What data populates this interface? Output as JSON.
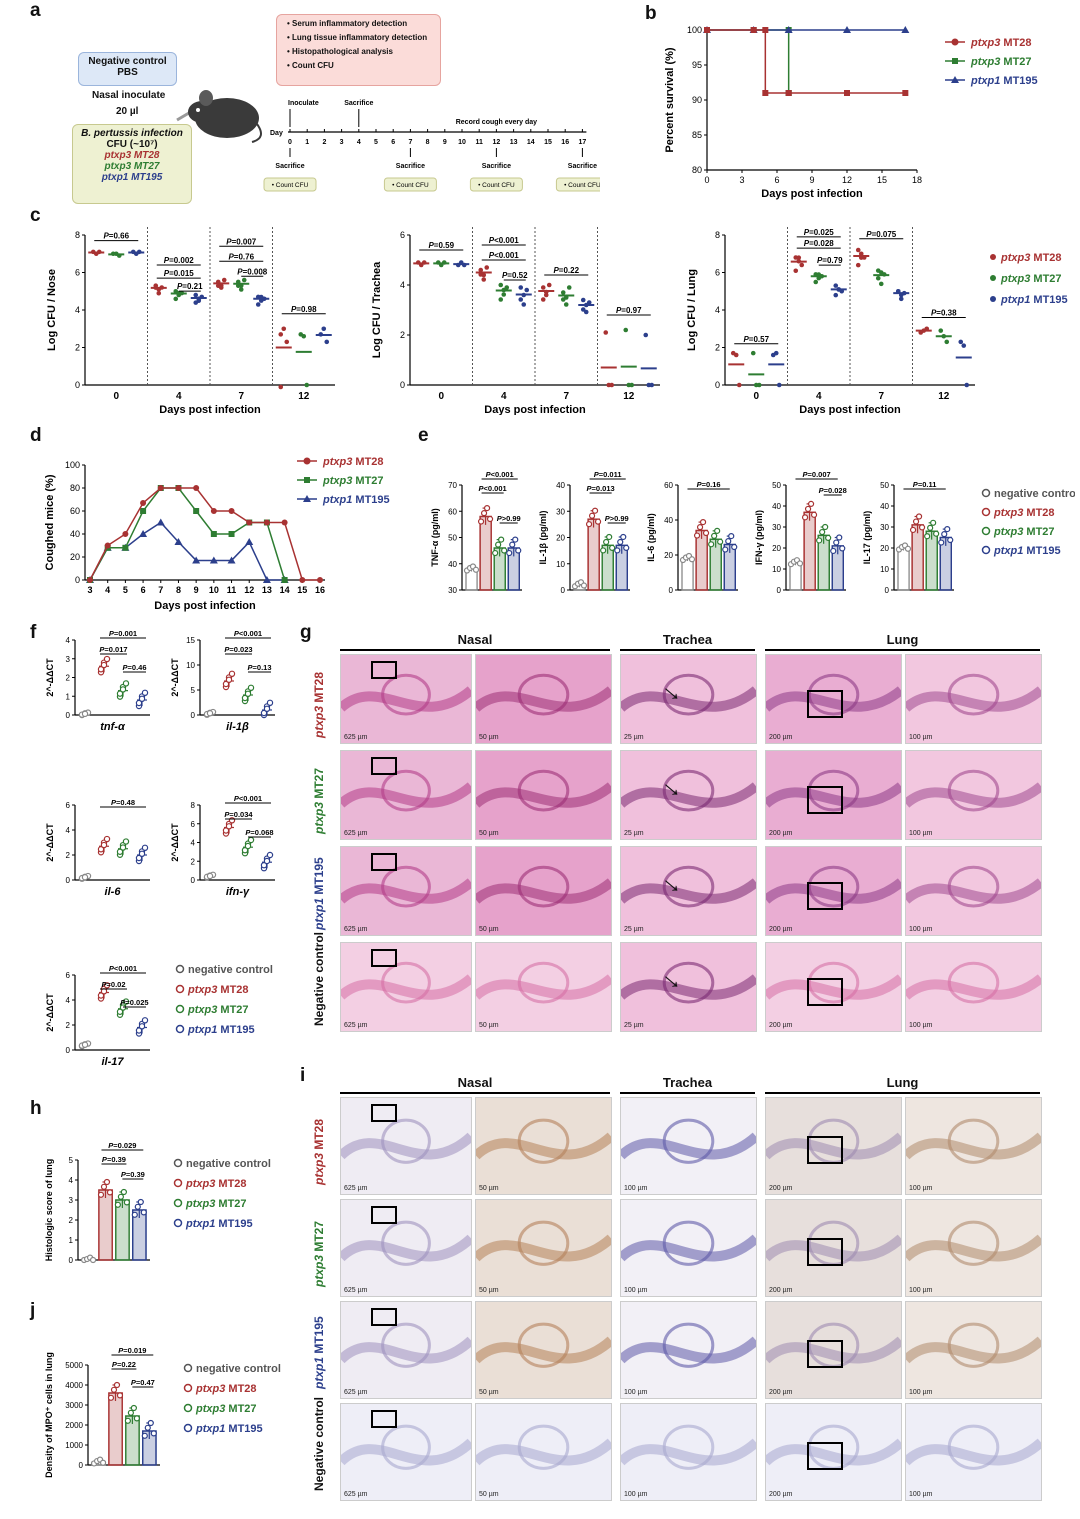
{
  "panels": {
    "a": "a",
    "b": "b",
    "c": "c",
    "d": "d",
    "e": "e",
    "f": "f",
    "g": "g",
    "h": "h",
    "i": "i",
    "j": "j"
  },
  "colors": {
    "mt28": "#a83232",
    "mt27": "#2e7d32",
    "mt195": "#2c3f8c",
    "neg": "#888888"
  },
  "legend": {
    "neg": "negative control",
    "mt28_a": "ptxp3",
    "mt28_b": " MT28",
    "mt27_a": "ptxp3",
    "mt27_b": " MT27",
    "mt195_a": "ptxp1",
    "mt195_b": " MT195"
  },
  "panel_a": {
    "neg_title": "Negative control",
    "neg_sub": "PBS",
    "nasal": "Nasal inoculate",
    "vol": "20 µl",
    "infect_title": "B. pertussis infection",
    "infect_cfu": "CFU (~10⁷)",
    "strains": [
      "ptxp3 MT28",
      "ptxp3 MT27",
      "ptxp1 MT195"
    ],
    "analysis": [
      "Serum inflammatory detection",
      "Lung tissue inflammatory detection",
      "Histopathological analysis",
      "Count CFU"
    ],
    "inoculate": "Inoculate",
    "sacrifice": "Sacrifice",
    "record": "Record cough every day",
    "day_label": "Day",
    "days": [
      "0",
      "1",
      "2",
      "3",
      "4",
      "5",
      "6",
      "7",
      "8",
      "9",
      "10",
      "11",
      "12",
      "13",
      "14",
      "15",
      "16",
      "17"
    ],
    "sacrifice_days": [
      "0",
      "7",
      "12",
      "17"
    ],
    "count_cfu": "Count CFU"
  },
  "chart_data": [
    {
      "id": "b",
      "type": "line",
      "ylabel": "Percent survival (%)",
      "xlabel": "Days post infection",
      "xlim": [
        0,
        18
      ],
      "ylim": [
        80,
        100
      ],
      "xticks": [
        "0",
        "3",
        "6",
        "9",
        "12",
        "15",
        "18"
      ],
      "yticks": [
        "80",
        "85",
        "90",
        "95",
        "100"
      ],
      "series": [
        {
          "name": "ptxp3 MT28",
          "points": [
            [
              0,
              100
            ],
            [
              4,
              100
            ],
            [
              5,
              100
            ],
            [
              5,
              91
            ],
            [
              7,
              91
            ],
            [
              12,
              91
            ],
            [
              17,
              91
            ]
          ]
        },
        {
          "name": "ptxp3 MT27",
          "points": [
            [
              0,
              100
            ],
            [
              4,
              100
            ],
            [
              7,
              100
            ],
            [
              7,
              91
            ],
            [
              7,
              91
            ]
          ]
        },
        {
          "name": "ptxp1 MT195",
          "points": [
            [
              0,
              100
            ],
            [
              4,
              100
            ],
            [
              7,
              100
            ],
            [
              12,
              100
            ],
            [
              17,
              100
            ]
          ]
        }
      ]
    },
    {
      "id": "c1",
      "type": "scatter",
      "ylabel": "Log CFU / Nose",
      "xlabel": "Days post infection",
      "ylim": [
        0,
        8
      ],
      "categories": [
        "0",
        "4",
        "7",
        "12"
      ],
      "yticks": [
        "0",
        "2",
        "4",
        "6",
        "8"
      ],
      "series": [
        {
          "name": "ptxp3 MT28",
          "groups": [
            [
              7.1,
              7.0,
              7.1
            ],
            [
              5.3,
              5.1,
              5.2,
              5.3,
              5.0
            ],
            [
              5.5,
              5.3,
              5.6,
              5.4,
              5.3
            ],
            [
              2.7,
              3.0,
              2.3,
              0
            ]
          ]
        },
        {
          "name": "ptxp3 MT27",
          "groups": [
            [
              7.0,
              7.0,
              6.9
            ],
            [
              5.0,
              4.8,
              4.9,
              4.7,
              5.0
            ],
            [
              5.5,
              5.3,
              5.6,
              5.4,
              5.2
            ],
            [
              2.7,
              2.6,
              0
            ]
          ]
        },
        {
          "name": "ptxp1 MT195",
          "groups": [
            [
              7.1,
              7.0,
              7.1
            ],
            [
              4.8,
              4.6,
              4.7,
              4.5,
              4.6
            ],
            [
              4.7,
              4.5,
              4.6,
              4.4,
              4.8
            ],
            [
              2.7,
              3.0,
              2.3
            ]
          ]
        }
      ],
      "pvalues": [
        {
          "text": "P=0.66"
        },
        {
          "text": "P=0.002"
        },
        {
          "text": "P=0.015"
        },
        {
          "text": "P=0.21"
        },
        {
          "text": "P=0.007"
        },
        {
          "text": "P=0.76"
        },
        {
          "text": "P=0.008"
        },
        {
          "text": "P=0.98"
        }
      ]
    },
    {
      "id": "c2",
      "type": "scatter",
      "ylabel": "Log CFU / Trachea",
      "xlabel": "Days post infection",
      "ylim": [
        0,
        6
      ],
      "categories": [
        "0",
        "4",
        "7",
        "12"
      ],
      "yticks": [
        "0",
        "2",
        "4",
        "6"
      ],
      "series": [
        {
          "name": "ptxp3 MT28",
          "groups": [
            [
              4.9,
              4.8,
              4.9
            ],
            [
              4.6,
              4.4,
              4.7,
              4.5,
              4.3
            ],
            [
              3.9,
              3.6,
              4.0,
              3.5,
              3.8
            ],
            [
              2.1,
              0,
              0
            ]
          ]
        },
        {
          "name": "ptxp3 MT27",
          "groups": [
            [
              4.9,
              4.8,
              4.9
            ],
            [
              4.0,
              3.8,
              3.9,
              3.5,
              3.7
            ],
            [
              3.7,
              3.5,
              3.9,
              3.5,
              3.3
            ],
            [
              2.2,
              0,
              0
            ]
          ]
        },
        {
          "name": "ptxp1 MT195",
          "groups": [
            [
              4.8,
              4.9,
              4.8
            ],
            [
              3.9,
              3.6,
              3.8,
              3.5,
              3.3
            ],
            [
              3.4,
              3.2,
              3.3,
              3.1,
              3.0
            ],
            [
              2.0,
              0,
              0
            ]
          ]
        }
      ],
      "pvalues": [
        {
          "text": "P=0.59"
        },
        {
          "text": "P<0.001"
        },
        {
          "text": "P<0.001"
        },
        {
          "text": "P=0.52"
        },
        {
          "text": "P=0.22"
        },
        {
          "text": "P=0.97"
        }
      ]
    },
    {
      "id": "c3",
      "type": "scatter",
      "ylabel": "Log CFU / Lung",
      "xlabel": "Days post infection",
      "ylim": [
        0,
        8
      ],
      "categories": [
        "0",
        "4",
        "7",
        "12"
      ],
      "yticks": [
        "0",
        "2",
        "4",
        "6",
        "8"
      ],
      "series": [
        {
          "name": "ptxp3 MT28",
          "groups": [
            [
              1.7,
              1.6,
              0
            ],
            [
              6.8,
              6.6,
              6.4,
              6.2,
              6.9
            ],
            [
              7.2,
              7.0,
              6.8,
              6.5,
              6.9
            ],
            [
              2.8,
              2.9,
              3.0
            ]
          ]
        },
        {
          "name": "ptxp3 MT27",
          "groups": [
            [
              1.7,
              0,
              0
            ],
            [
              5.9,
              5.7,
              5.8,
              5.6,
              6.0
            ],
            [
              6.1,
              6.0,
              5.9,
              5.8,
              5.5
            ],
            [
              2.9,
              2.6,
              2.3
            ]
          ]
        },
        {
          "name": "ptxp1 MT195",
          "groups": [
            [
              1.6,
              1.7,
              0
            ],
            [
              5.3,
              5.1,
              5.0,
              4.9,
              5.2
            ],
            [
              5.0,
              4.8,
              4.9,
              5.1,
              4.7
            ],
            [
              2.3,
              2.1,
              0
            ]
          ]
        }
      ],
      "pvalues": [
        {
          "text": "P=0.57"
        },
        {
          "text": "P=0.025"
        },
        {
          "text": "P=0.028"
        },
        {
          "text": "P=0.79"
        },
        {
          "text": "P=0.075"
        },
        {
          "text": "P=0.38"
        }
      ]
    },
    {
      "id": "d",
      "type": "line",
      "ylabel": "Coughed mice (%)",
      "xlabel": "Days post infection",
      "ylim": [
        0,
        100
      ],
      "x": [
        "3",
        "4",
        "5",
        "6",
        "7",
        "8",
        "9",
        "10",
        "11",
        "12",
        "13",
        "14",
        "15",
        "16"
      ],
      "yticks": [
        "0",
        "20",
        "40",
        "60",
        "80",
        "100"
      ],
      "series": [
        {
          "name": "ptxp3 MT28",
          "values": [
            0,
            30,
            40,
            67,
            80,
            80,
            80,
            60,
            60,
            50,
            50,
            50,
            0,
            0
          ]
        },
        {
          "name": "ptxp3 MT27",
          "values": [
            0,
            28,
            28,
            60,
            80,
            80,
            60,
            40,
            40,
            50,
            50,
            0,
            null,
            null
          ]
        },
        {
          "name": "ptxp1 MT195",
          "values": [
            0,
            28,
            28,
            40,
            50,
            33,
            17,
            17,
            17,
            33,
            0,
            0,
            null,
            null
          ]
        }
      ]
    },
    {
      "id": "e1",
      "type": "bar",
      "ylabel": "TNF-α (pg/ml)",
      "ylim": [
        30,
        70
      ],
      "yticks": [
        "30",
        "40",
        "50",
        "60",
        "70"
      ],
      "values": [
        38,
        58,
        46,
        46
      ],
      "pvalues": [
        "P<0.001",
        "P<0.001",
        "P>0.99"
      ]
    },
    {
      "id": "e2",
      "type": "bar",
      "ylabel": "IL-1β (pg/ml)",
      "ylim": [
        0,
        40
      ],
      "yticks": [
        "0",
        "10",
        "20",
        "30",
        "40"
      ],
      "values": [
        2,
        27,
        17,
        17
      ],
      "pvalues": [
        "P=0.011",
        "P=0.013",
        "P>0.99"
      ]
    },
    {
      "id": "e3",
      "type": "bar",
      "ylabel": "IL-6 (pg/ml)",
      "ylim": [
        0,
        60
      ],
      "yticks": [
        "0",
        "20",
        "40",
        "60"
      ],
      "values": [
        18,
        34,
        29,
        26
      ],
      "pvalues": [
        "P=0.16"
      ]
    },
    {
      "id": "e4",
      "type": "bar",
      "ylabel": "IFN-γ (pg/ml)",
      "ylim": [
        0,
        50
      ],
      "yticks": [
        "0",
        "10",
        "20",
        "30",
        "40",
        "50"
      ],
      "values": [
        13,
        37,
        26,
        21
      ],
      "pvalues": [
        "P=0.007",
        "P=0.028"
      ]
    },
    {
      "id": "e5",
      "type": "bar",
      "ylabel": "IL-17 (pg/ml)",
      "ylim": [
        0,
        50
      ],
      "yticks": [
        "0",
        "10",
        "20",
        "30",
        "40",
        "50"
      ],
      "values": [
        20,
        31,
        28,
        25
      ],
      "pvalues": [
        "P=0.11"
      ]
    },
    {
      "id": "f1",
      "type": "scatter",
      "ylabel": "2^-ΔΔCT",
      "title": "tnf-α",
      "ylim": [
        0,
        4
      ],
      "yticks": [
        "0",
        "1",
        "2",
        "3",
        "4"
      ],
      "values": [
        0.05,
        2.6,
        1.3,
        0.8
      ],
      "pvalues": [
        "P=0.001",
        "P=0.017",
        "P=0.46"
      ]
    },
    {
      "id": "f2",
      "type": "scatter",
      "ylabel": "2^-ΔΔCT",
      "title": "il-1β",
      "ylim": [
        0,
        15
      ],
      "yticks": [
        "0",
        "5",
        "10",
        "15"
      ],
      "values": [
        0.3,
        6.8,
        4.0,
        1.0
      ],
      "pvalues": [
        "P<0.001",
        "P=0.023",
        "P=0.13"
      ]
    },
    {
      "id": "f3",
      "type": "scatter",
      "ylabel": "2^-ΔΔCT",
      "title": "il-6",
      "ylim": [
        0,
        6
      ],
      "yticks": [
        "0",
        "2",
        "4",
        "6"
      ],
      "values": [
        0.2,
        2.7,
        2.5,
        2.0
      ],
      "pvalues": [
        "P=0.48"
      ]
    },
    {
      "id": "f4",
      "type": "scatter",
      "ylabel": "2^-ΔΔCT",
      "title": "ifn-γ",
      "ylim": [
        0,
        8
      ],
      "yticks": [
        "0",
        "2",
        "4",
        "6",
        "8"
      ],
      "values": [
        0.4,
        5.6,
        3.5,
        1.9
      ],
      "pvalues": [
        "P<0.001",
        "P=0.034",
        "P=0.068"
      ]
    },
    {
      "id": "f5",
      "type": "scatter",
      "ylabel": "2^-ΔΔCT",
      "title": "il-17",
      "ylim": [
        0,
        6
      ],
      "yticks": [
        "0",
        "2",
        "4",
        "6"
      ],
      "values": [
        0.4,
        4.6,
        3.3,
        1.8
      ],
      "pvalues": [
        "P<0.001",
        "P=0.02",
        "P=0.025"
      ]
    },
    {
      "id": "h",
      "type": "bar",
      "ylabel": "Histologic score of lung",
      "ylim": [
        0,
        5
      ],
      "yticks": [
        "0",
        "1",
        "2",
        "3",
        "4",
        "5"
      ],
      "values": [
        0,
        3.5,
        3.0,
        2.5
      ],
      "pvalues": [
        "P=0.029",
        "P=0.39",
        "P=0.39"
      ]
    },
    {
      "id": "j",
      "type": "bar",
      "ylabel": "Density of MPO⁺ cells in lung",
      "ylim": [
        0,
        5000
      ],
      "yticks": [
        "0",
        "1000",
        "2000",
        "3000",
        "4000",
        "5000"
      ],
      "values": [
        150,
        3600,
        2450,
        1700
      ],
      "pvalues": [
        "P=0.019",
        "P=0.22",
        "P=0.47"
      ]
    }
  ],
  "histology": {
    "nasal": "Nasal",
    "trachea": "Trachea",
    "lung": "Lung",
    "rows": [
      "ptxp3 MT28",
      "ptxp3 MT27",
      "ptxp1 MT195",
      "Negative control"
    ],
    "scales": [
      "625 µm",
      "50 µm",
      "25 µm",
      "200 µm",
      "100 µm"
    ],
    "ihc_scales": [
      "625 µm",
      "50 µm",
      "100 µm",
      "200 µm",
      "100 µm"
    ]
  }
}
